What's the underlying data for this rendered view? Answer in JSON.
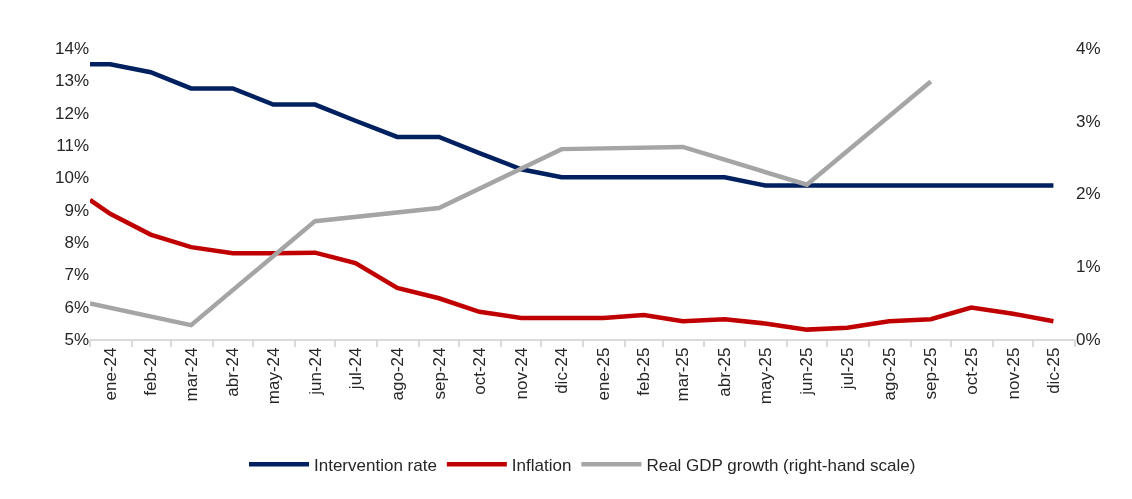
{
  "chart_data": {
    "type": "line",
    "x": [
      "2024-01-01",
      "2024-01-16",
      "2024-02-15",
      "2024-03-16",
      "2024-04-16",
      "2024-05-16",
      "2024-06-16",
      "2024-07-16",
      "2024-08-16",
      "2024-09-16",
      "2024-10-16",
      "2024-11-16",
      "2024-12-16",
      "2025-01-16",
      "2025-02-15",
      "2025-03-16",
      "2025-04-16",
      "2025-05-16",
      "2025-06-16",
      "2025-07-16",
      "2025-08-16",
      "2025-09-16",
      "2025-10-16",
      "2025-11-16",
      "2025-12-16"
    ],
    "series": [
      {
        "name": "Intervention rate",
        "color": "#002060",
        "values": [
          13.5,
          13.5,
          13.25,
          12.75,
          12.75,
          12.25,
          12.25,
          11.75,
          11.25,
          11.25,
          10.75,
          10.25,
          10,
          10,
          10,
          10,
          10,
          9.75,
          9.75,
          9.75,
          9.75,
          9.75,
          9.75,
          9.75,
          9.75
        ]
      },
      {
        "name": "Inflation",
        "color": "#c00000",
        "values": [
          9.3,
          8.87,
          8.23,
          7.84,
          7.65,
          7.65,
          7.67,
          7.35,
          6.58,
          6.26,
          5.84,
          5.65,
          5.65,
          5.65,
          5.74,
          5.55,
          5.61,
          5.48,
          5.29,
          5.35,
          5.55,
          5.61,
          5.97,
          5.78,
          5.55
        ]
      },
      {
        "name": "Real GDP growth (right-hand scale)",
        "color": "#a5a5a5",
        "axis": "y2",
        "x": [
          "2024-01-01",
          "2024-03-16",
          "2024-06-16",
          "2024-09-16",
          "2024-12-16",
          "2025-03-16",
          "2025-06-16",
          "2025-09-16"
        ],
        "values": [
          0.49,
          0.19,
          1.62,
          1.8,
          2.61,
          2.64,
          2.12,
          3.54
        ]
      }
    ],
    "xlim": [
      "2024-01-01",
      "2026-01-01"
    ],
    "xticks": [
      {
        "value": "2024-01-16",
        "label": "ene-24"
      },
      {
        "value": "2024-02-15",
        "label": "feb-24"
      },
      {
        "value": "2024-03-16",
        "label": "mar-24"
      },
      {
        "value": "2024-04-16",
        "label": "abr-24"
      },
      {
        "value": "2024-05-16",
        "label": "may-24"
      },
      {
        "value": "2024-06-16",
        "label": "jun-24"
      },
      {
        "value": "2024-07-16",
        "label": "jul-24"
      },
      {
        "value": "2024-08-16",
        "label": "ago-24"
      },
      {
        "value": "2024-09-16",
        "label": "sep-24"
      },
      {
        "value": "2024-10-16",
        "label": "oct-24"
      },
      {
        "value": "2024-11-16",
        "label": "nov-24"
      },
      {
        "value": "2024-12-16",
        "label": "dic-24"
      },
      {
        "value": "2025-01-16",
        "label": "ene-25"
      },
      {
        "value": "2025-02-15",
        "label": "feb-25"
      },
      {
        "value": "2025-03-16",
        "label": "mar-25"
      },
      {
        "value": "2025-04-16",
        "label": "abr-25"
      },
      {
        "value": "2025-05-16",
        "label": "may-25"
      },
      {
        "value": "2025-06-16",
        "label": "jun-25"
      },
      {
        "value": "2025-07-16",
        "label": "jul-25"
      },
      {
        "value": "2025-08-16",
        "label": "ago-25"
      },
      {
        "value": "2025-09-16",
        "label": "sep-25"
      },
      {
        "value": "2025-10-16",
        "label": "oct-25"
      },
      {
        "value": "2025-11-16",
        "label": "nov-25"
      },
      {
        "value": "2025-12-16",
        "label": "dic-25"
      },
      {
        "value": "2024-01-01",
        "label": null
      },
      {
        "value": "2024-02-01",
        "label": null
      },
      {
        "value": "2024-03-01",
        "label": null
      },
      {
        "value": "2024-04-01",
        "label": null
      },
      {
        "value": "2024-05-01",
        "label": null
      },
      {
        "value": "2024-06-01",
        "label": null
      },
      {
        "value": "2024-07-01",
        "label": null
      },
      {
        "value": "2024-08-01",
        "label": null
      },
      {
        "value": "2024-09-01",
        "label": null
      },
      {
        "value": "2024-10-01",
        "label": null
      },
      {
        "value": "2024-11-01",
        "label": null
      },
      {
        "value": "2024-12-01",
        "label": null
      },
      {
        "value": "2025-01-01",
        "label": null
      },
      {
        "value": "2025-02-01",
        "label": null
      },
      {
        "value": "2025-03-01",
        "label": null
      },
      {
        "value": "2025-04-01",
        "label": null
      },
      {
        "value": "2025-05-01",
        "label": null
      },
      {
        "value": "2025-06-01",
        "label": null
      },
      {
        "value": "2025-07-01",
        "label": null
      },
      {
        "value": "2025-08-01",
        "label": null
      },
      {
        "value": "2025-09-01",
        "label": null
      },
      {
        "value": "2025-10-01",
        "label": null
      },
      {
        "value": "2025-11-01",
        "label": null
      },
      {
        "value": "2025-12-01",
        "label": null
      },
      {
        "value": "2026-01-01",
        "label": null
      }
    ],
    "ylim": [
      5,
      14
    ],
    "yticks": [
      {
        "value": 5,
        "label": "5%"
      },
      {
        "value": 6,
        "label": "6%"
      },
      {
        "value": 7,
        "label": "7%"
      },
      {
        "value": 8,
        "label": "8%"
      },
      {
        "value": 9,
        "label": "9%"
      },
      {
        "value": 10,
        "label": "10%"
      },
      {
        "value": 11,
        "label": "11%"
      },
      {
        "value": 12,
        "label": "12%"
      },
      {
        "value": 13,
        "label": "13%"
      },
      {
        "value": 14,
        "label": "14%"
      }
    ],
    "y2lim": [
      0,
      4
    ],
    "y2ticks": [
      {
        "value": 0,
        "label": "0%"
      },
      {
        "value": 1,
        "label": "1%"
      },
      {
        "value": 2,
        "label": "2%"
      },
      {
        "value": 3,
        "label": "3%"
      },
      {
        "value": 4,
        "label": "4%"
      }
    ],
    "grid": false,
    "legend": "bottom",
    "line_style": "solid",
    "marker": "none"
  }
}
